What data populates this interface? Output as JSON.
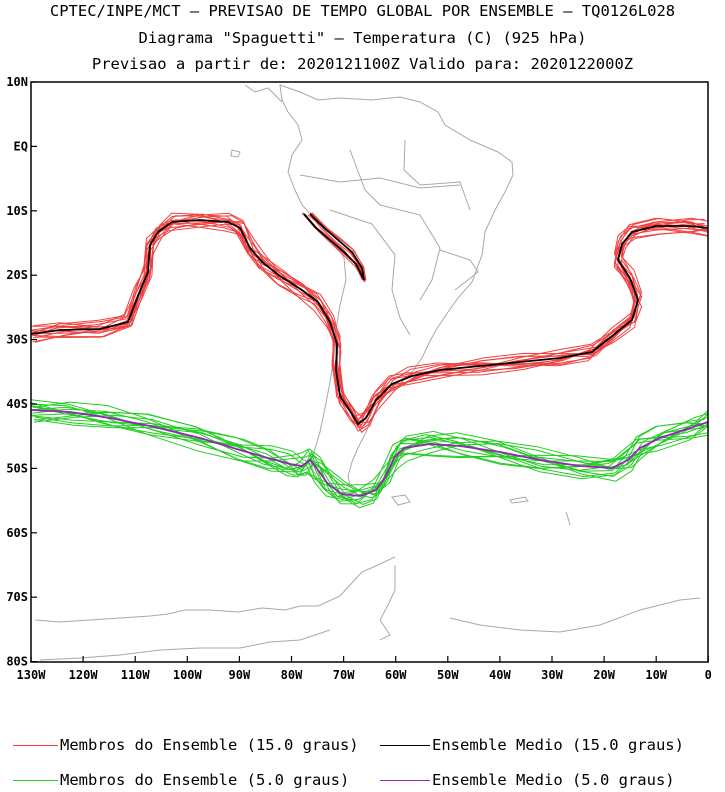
{
  "titles": {
    "line1": "CPTEC/INPE/MCT — PREVISAO DE TEMPO GLOBAL POR ENSEMBLE — TQ0126L028",
    "line2": "Diagrama \"Spaguetti\" — Temperatura (C) (925 hPa)",
    "line3": "Previsao a partir de: 2020121100Z  Valido para: 2020122000Z"
  },
  "lat_labels": [
    "10N",
    "EQ",
    "10S",
    "20S",
    "30S",
    "40S",
    "50S",
    "60S",
    "70S",
    "80S"
  ],
  "lon_labels": [
    "130W",
    "120W",
    "110W",
    "100W",
    "90W",
    "80W",
    "70W",
    "60W",
    "50W",
    "40W",
    "30W",
    "20W",
    "10W",
    "0"
  ],
  "legend": {
    "members_15": "Membros do Ensemble (15.0 graus)",
    "mean_15": "Ensemble Medio (15.0 graus)",
    "members_5": "Membros do Ensemble (5.0 graus)",
    "mean_5": "Ensemble Medio (5.0 graus)"
  },
  "colors": {
    "members_15": "#f04040",
    "mean_15": "#000000",
    "members_5": "#22cc22",
    "mean_5": "#9922bb",
    "coast": "#a8a8a8"
  }
}
